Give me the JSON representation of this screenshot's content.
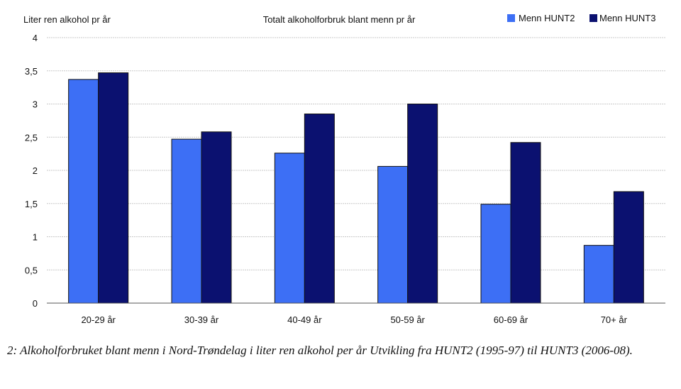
{
  "chart_data": {
    "type": "bar",
    "title": "Totalt alkoholforbruk blant menn pr år",
    "xlabel": "",
    "ylabel": "Liter ren alkohol pr år",
    "ylim": [
      0,
      4
    ],
    "yticks": [
      0,
      0.5,
      1,
      1.5,
      2,
      2.5,
      3,
      3.5,
      4
    ],
    "ytick_labels": [
      "0",
      "0,5",
      "1",
      "1,5",
      "2",
      "2,5",
      "3",
      "3,5",
      "4"
    ],
    "grid": true,
    "legend_position": "top-right",
    "categories": [
      "20-29 år",
      "30-39 år",
      "40-49 år",
      "50-59 år",
      "60-69 år",
      "70+ år"
    ],
    "series": [
      {
        "name": "Menn HUNT2",
        "color": "#3d6ff5",
        "values": [
          3.37,
          2.47,
          2.26,
          2.06,
          1.49,
          0.87
        ]
      },
      {
        "name": "Menn HUNT3",
        "color": "#0b1170",
        "values": [
          3.47,
          2.58,
          2.85,
          3.0,
          2.42,
          1.68
        ]
      }
    ]
  },
  "caption": "2: Alkoholforbruket blant menn i Nord-Trøndelag i liter ren alkohol per år Utvikling fra HUNT2 (1995-97) til HUNT3 (2006-08)."
}
